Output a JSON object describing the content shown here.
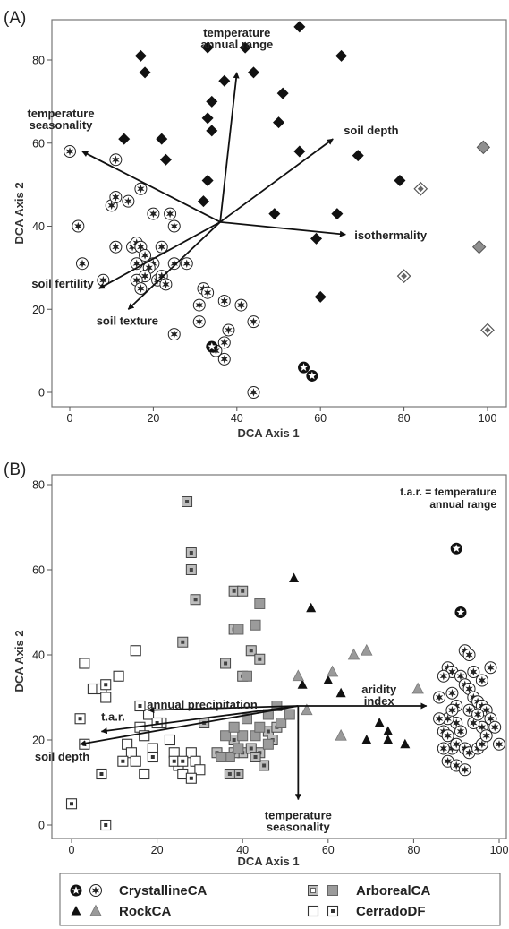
{
  "figure": {
    "legend": {
      "entries": [
        {
          "label": "CrystallineCA",
          "symbols": [
            "crystalline-open",
            "crystalline-filled"
          ]
        },
        {
          "label": "ArborealCA",
          "symbols": [
            "arboreal-open",
            "arboreal-filled"
          ]
        },
        {
          "label": "RockCA",
          "symbols": [
            "rock-black",
            "rock-gray"
          ]
        },
        {
          "label": "CerradoDF",
          "symbols": [
            "cerrado-open",
            "cerrado-dot"
          ]
        }
      ]
    }
  },
  "chart_data": [
    {
      "panel": "(A)",
      "type": "scatter",
      "xlabel": "DCA Axis 1",
      "ylabel": "DCA Axis 2",
      "xlim": [
        0,
        100
      ],
      "ylim": [
        0,
        85
      ],
      "xticks": [
        0,
        20,
        40,
        60,
        80,
        100
      ],
      "yticks": [
        0,
        20,
        40,
        60,
        80
      ],
      "origin": [
        36,
        41
      ],
      "vectors": [
        {
          "label": "temperature annual range",
          "lines": [
            "temperature",
            "annual range"
          ],
          "tip": [
            40,
            77
          ]
        },
        {
          "label": "temperature seasonality",
          "lines": [
            "temperature",
            "seasonality"
          ],
          "tip": [
            3,
            58
          ]
        },
        {
          "label": "soil depth",
          "lines": [
            "soil depth"
          ],
          "tip": [
            63,
            61
          ]
        },
        {
          "label": "isothermality",
          "lines": [
            "isothermality"
          ],
          "tip": [
            66,
            38
          ]
        },
        {
          "label": "soil fertility",
          "lines": [
            "soil fertility"
          ],
          "tip": [
            7,
            25
          ]
        },
        {
          "label": "soil texture",
          "lines": [
            "soil texture"
          ],
          "tip": [
            14,
            20
          ]
        }
      ],
      "series": [
        {
          "symbol": "diamond-black",
          "points": [
            [
              17,
              81
            ],
            [
              18,
              77
            ],
            [
              13,
              61
            ],
            [
              22,
              61
            ],
            [
              23,
              56
            ],
            [
              33,
              83
            ],
            [
              37,
              75
            ],
            [
              42,
              83
            ],
            [
              44,
              77
            ],
            [
              34,
              70
            ],
            [
              33,
              66
            ],
            [
              34,
              63
            ],
            [
              33,
              51
            ],
            [
              32,
              46
            ],
            [
              51,
              72
            ],
            [
              55,
              88
            ],
            [
              50,
              65
            ],
            [
              55,
              58
            ],
            [
              65,
              81
            ],
            [
              69,
              57
            ],
            [
              79,
              51
            ],
            [
              64,
              43
            ],
            [
              49,
              43
            ],
            [
              59,
              37
            ],
            [
              60,
              23
            ]
          ]
        },
        {
          "symbol": "diamond-gray",
          "points": [
            [
              99,
              59
            ],
            [
              98,
              35
            ]
          ]
        },
        {
          "symbol": "diamond-open-dot",
          "points": [
            [
              84,
              49
            ],
            [
              80,
              28
            ],
            [
              100,
              15
            ]
          ]
        },
        {
          "symbol": "crystalline-filled",
          "points": [
            [
              0,
              58
            ],
            [
              11,
              56
            ],
            [
              2,
              40
            ],
            [
              3,
              31
            ],
            [
              10,
              45
            ],
            [
              11,
              47
            ],
            [
              14,
              46
            ],
            [
              11,
              35
            ],
            [
              15,
              35
            ],
            [
              16,
              36
            ],
            [
              17,
              35
            ],
            [
              16,
              31
            ],
            [
              18,
              33
            ],
            [
              17,
              49
            ],
            [
              20,
              43
            ],
            [
              24,
              43
            ],
            [
              25,
              40
            ],
            [
              22,
              35
            ],
            [
              20,
              31
            ],
            [
              19,
              30
            ],
            [
              18,
              28
            ],
            [
              21,
              27
            ],
            [
              22,
              28
            ],
            [
              23,
              26
            ],
            [
              25,
              31
            ],
            [
              28,
              31
            ],
            [
              16,
              27
            ],
            [
              17,
              25
            ],
            [
              8,
              27
            ],
            [
              32,
              25
            ],
            [
              33,
              24
            ],
            [
              31,
              21
            ],
            [
              31,
              17
            ],
            [
              37,
              22
            ],
            [
              41,
              21
            ],
            [
              44,
              17
            ],
            [
              25,
              14
            ],
            [
              38,
              15
            ],
            [
              37,
              12
            ],
            [
              35,
              10
            ],
            [
              37,
              8
            ],
            [
              44,
              0
            ]
          ]
        },
        {
          "symbol": "crystalline-open",
          "points": [
            [
              34,
              11
            ],
            [
              56,
              6
            ],
            [
              58,
              4
            ]
          ]
        }
      ]
    },
    {
      "panel": "(B)",
      "type": "scatter",
      "xlabel": "DCA Axis 1",
      "ylabel": "DCA Axis 2",
      "xlim": [
        0,
        100
      ],
      "ylim": [
        0,
        80
      ],
      "xticks": [
        0,
        20,
        40,
        60,
        80,
        100
      ],
      "yticks": [
        0,
        20,
        40,
        60,
        80
      ],
      "origin": [
        53,
        28
      ],
      "annotation": {
        "text": "t.a.r. = temperature annual range",
        "lines": [
          "t.a.r. = temperature",
          "annual range"
        ]
      },
      "vectors": [
        {
          "label": "aridity index",
          "lines": [
            "aridity",
            "index"
          ],
          "tip": [
            83,
            28
          ]
        },
        {
          "label": "annual precipitation",
          "lines": [
            "annual precipitation"
          ],
          "tip": [
            18,
            27
          ]
        },
        {
          "label": "t.a.r.",
          "lines": [
            "t.a.r."
          ],
          "tip": [
            7,
            22
          ]
        },
        {
          "label": "soil depth",
          "lines": [
            "soil depth"
          ],
          "tip": [
            2,
            19
          ]
        },
        {
          "label": "temperature seasonality",
          "lines": [
            "temperature",
            "seasonality"
          ],
          "tip": [
            53,
            6
          ]
        }
      ],
      "series": [
        {
          "name": "CrystallineCA",
          "symbol": "crystalline-open",
          "points": [
            [
              90,
              65
            ],
            [
              91,
              50
            ]
          ]
        },
        {
          "name": "CrystallineCA",
          "symbol": "crystalline-filled",
          "points": [
            [
              92,
              41
            ],
            [
              93,
              40
            ],
            [
              88,
              37
            ],
            [
              89,
              36
            ],
            [
              87,
              35
            ],
            [
              91,
              35
            ],
            [
              92,
              33
            ],
            [
              93,
              32
            ],
            [
              96,
              34
            ],
            [
              94,
              30
            ],
            [
              95,
              29
            ],
            [
              96,
              28
            ],
            [
              97,
              27
            ],
            [
              98,
              25
            ],
            [
              96,
              23
            ],
            [
              94,
              24
            ],
            [
              90,
              24
            ],
            [
              88,
              25
            ],
            [
              86,
              25
            ],
            [
              87,
              22
            ],
            [
              88,
              21
            ],
            [
              89,
              18
            ],
            [
              90,
              19
            ],
            [
              92,
              18
            ],
            [
              93,
              17
            ],
            [
              95,
              18
            ],
            [
              96,
              19
            ],
            [
              97,
              21
            ],
            [
              99,
              23
            ],
            [
              98,
              37
            ],
            [
              100,
              19
            ],
            [
              87,
              18
            ],
            [
              88,
              15
            ],
            [
              90,
              14
            ],
            [
              92,
              13
            ],
            [
              89,
              31
            ],
            [
              90,
              28
            ],
            [
              93,
              27
            ],
            [
              91,
              22
            ],
            [
              89,
              27
            ],
            [
              94,
              36
            ],
            [
              86,
              30
            ],
            [
              95,
              26
            ]
          ]
        },
        {
          "name": "RockCA",
          "symbol": "rock-black",
          "points": [
            [
              52,
              58
            ],
            [
              56,
              51
            ],
            [
              54,
              33
            ],
            [
              60,
              34
            ],
            [
              63,
              31
            ],
            [
              69,
              20
            ],
            [
              72,
              24
            ],
            [
              74,
              22
            ],
            [
              74,
              20
            ],
            [
              78,
              19
            ]
          ]
        },
        {
          "name": "RockCA",
          "symbol": "rock-gray",
          "points": [
            [
              53,
              35
            ],
            [
              66,
              40
            ],
            [
              69,
              41
            ],
            [
              61,
              36
            ],
            [
              63,
              21
            ],
            [
              81,
              32
            ],
            [
              55,
              27
            ]
          ]
        },
        {
          "name": "ArborealCA",
          "symbol": "arboreal-dot",
          "points": [
            [
              27,
              76
            ],
            [
              28,
              64
            ],
            [
              28,
              60
            ],
            [
              29,
              53
            ],
            [
              26,
              43
            ],
            [
              38,
              55
            ],
            [
              40,
              55
            ],
            [
              38,
              46
            ],
            [
              40,
              35
            ],
            [
              42,
              41
            ],
            [
              44,
              39
            ],
            [
              36,
              38
            ],
            [
              31,
              24
            ],
            [
              38,
              20
            ],
            [
              40,
              17
            ],
            [
              44,
              17
            ],
            [
              45,
              14
            ],
            [
              46,
              22
            ],
            [
              47,
              20
            ],
            [
              38,
              17
            ],
            [
              39,
              12
            ],
            [
              37,
              12
            ],
            [
              42,
              18
            ],
            [
              43,
              16
            ],
            [
              48,
              23
            ],
            [
              34,
              17
            ]
          ]
        },
        {
          "name": "ArborealCA",
          "symbol": "arboreal-gray",
          "points": [
            [
              44,
              52
            ],
            [
              39,
              46
            ],
            [
              43,
              47
            ],
            [
              41,
              35
            ],
            [
              37,
              16
            ],
            [
              39,
              18
            ],
            [
              40,
              21
            ],
            [
              43,
              21
            ],
            [
              46,
              26
            ],
            [
              49,
              24
            ],
            [
              51,
              26
            ],
            [
              36,
              21
            ],
            [
              38,
              23
            ],
            [
              41,
              25
            ],
            [
              44,
              23
            ],
            [
              46,
              19
            ],
            [
              35,
              16
            ],
            [
              48,
              28
            ]
          ]
        },
        {
          "name": "CerradoDF",
          "symbol": "cerrado-open",
          "points": [
            [
              3,
              38
            ],
            [
              5,
              32
            ],
            [
              7,
              32
            ],
            [
              8,
              30
            ],
            [
              11,
              35
            ],
            [
              15,
              41
            ],
            [
              16,
              23
            ],
            [
              18,
              26
            ],
            [
              17,
              21
            ],
            [
              13,
              19
            ],
            [
              14,
              17
            ],
            [
              15,
              15
            ],
            [
              17,
              12
            ],
            [
              19,
              18
            ],
            [
              21,
              24
            ],
            [
              23,
              20
            ],
            [
              24,
              17
            ],
            [
              25,
              14
            ],
            [
              26,
              12
            ],
            [
              28,
              17
            ],
            [
              29,
              15
            ],
            [
              30,
              13
            ]
          ]
        },
        {
          "name": "CerradoDF",
          "symbol": "cerrado-dot",
          "points": [
            [
              2,
              25
            ],
            [
              3,
              19
            ],
            [
              7,
              12
            ],
            [
              8,
              33
            ],
            [
              0,
              5
            ],
            [
              8,
              0
            ],
            [
              12,
              15
            ],
            [
              16,
              28
            ],
            [
              19,
              16
            ],
            [
              20,
              24
            ],
            [
              24,
              15
            ],
            [
              26,
              15
            ],
            [
              28,
              11
            ]
          ]
        }
      ]
    }
  ]
}
